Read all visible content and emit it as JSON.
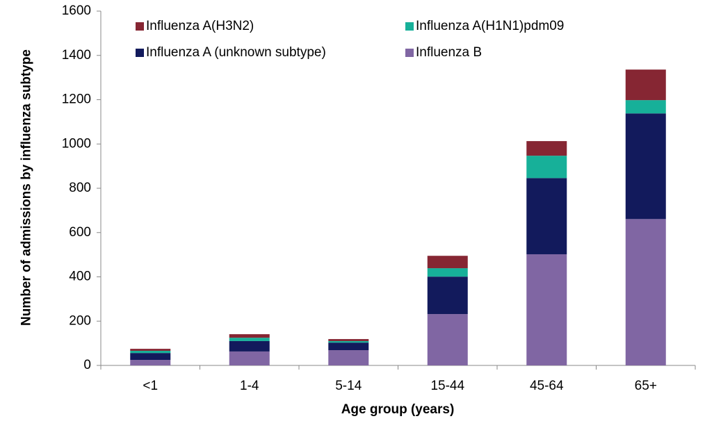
{
  "chart_data": {
    "type": "stacked_bar",
    "x_label": "Age group (years)",
    "y_label": "Number of admissions by influenza subtype",
    "categories": [
      "<1",
      "1-4",
      "5-14",
      "15-44",
      "45-64",
      "65+"
    ],
    "series": [
      {
        "name": "Influenza B",
        "color": "#8066a3",
        "values": [
          25,
          63,
          69,
          232,
          502,
          661
        ]
      },
      {
        "name": "Influenza A (unknown subtype)",
        "color": "#121a5c",
        "values": [
          31,
          47,
          34,
          169,
          344,
          477
        ]
      },
      {
        "name": "Influenza A(H1N1)pdm09",
        "color": "#17b099",
        "values": [
          10,
          15,
          7,
          38,
          101,
          60
        ]
      },
      {
        "name": "Influenza A(H3N2)",
        "color": "#862633",
        "values": [
          9,
          16,
          9,
          56,
          66,
          138
        ]
      }
    ],
    "ylim": [
      0,
      1600
    ],
    "yticks": [
      0,
      200,
      400,
      600,
      800,
      1000,
      1200,
      1400,
      1600
    ],
    "grid": false
  }
}
